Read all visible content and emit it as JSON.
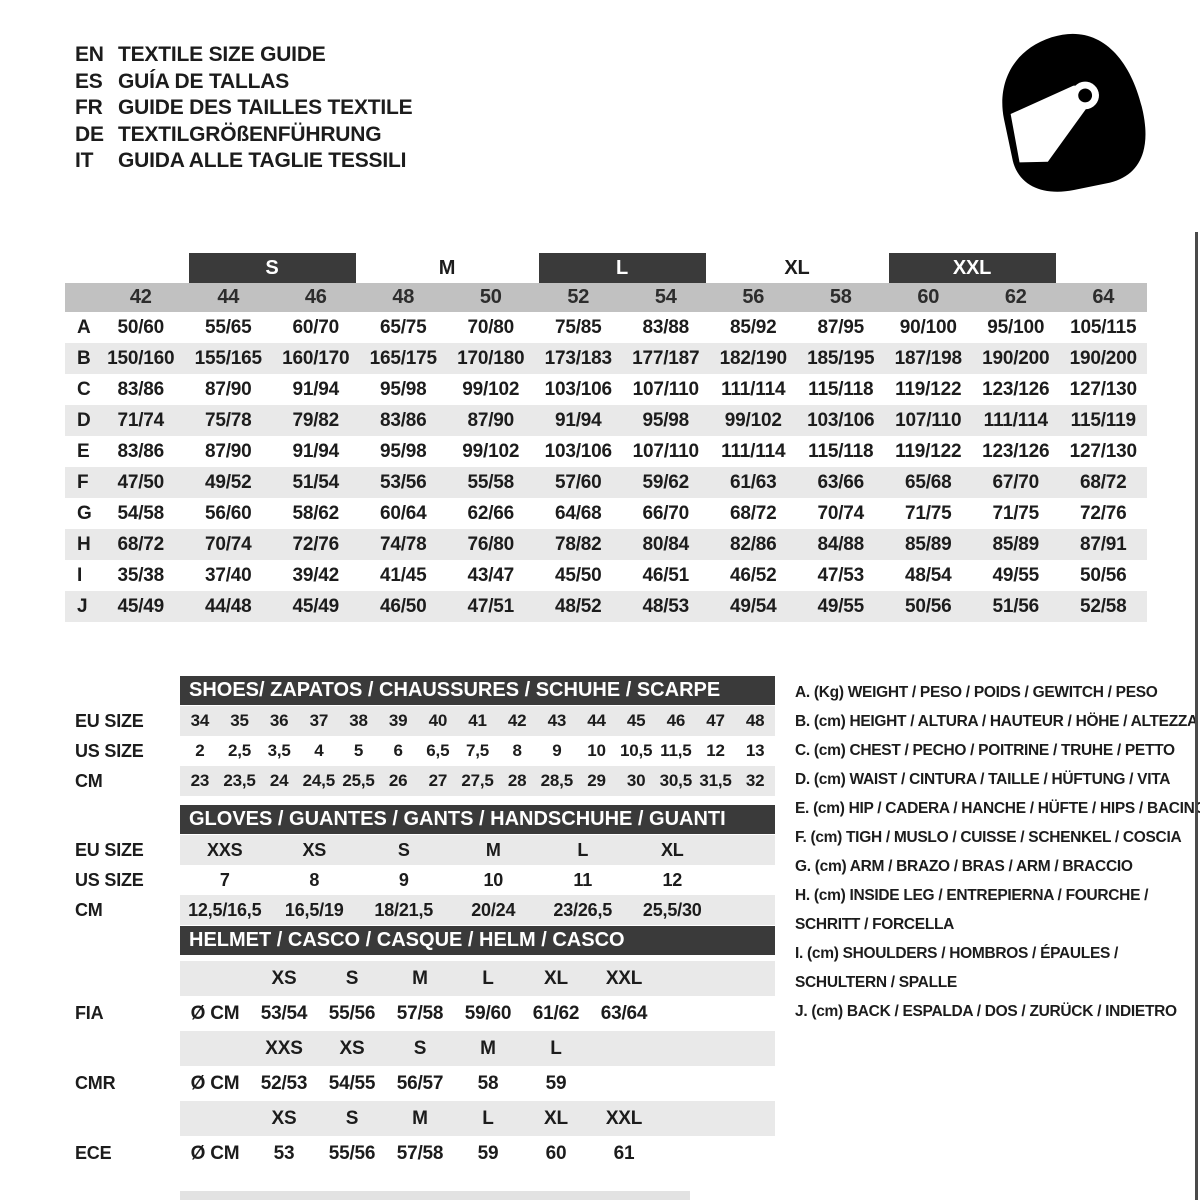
{
  "languages": [
    {
      "code": "EN",
      "label": "TEXTILE SIZE GUIDE"
    },
    {
      "code": "ES",
      "label": "GUÍA DE TALLAS"
    },
    {
      "code": "FR",
      "label": "GUIDE DES TAILLES TEXTILE"
    },
    {
      "code": "DE",
      "label": "TEXTILGRÖßENFÜHRUNG"
    },
    {
      "code": "IT",
      "label": "GUIDA ALLE TAGLIE TESSILI"
    }
  ],
  "helmet_icon": "full-face-racing-helmet",
  "colors": {
    "header_bar": "#3a3a3a",
    "number_band": "#c1c1c1",
    "row_stripe": "#e9e9e9",
    "icon": "#000000"
  },
  "main_table": {
    "size_groups": [
      {
        "label": "S",
        "bar": true,
        "covers": [
          "44",
          "46"
        ]
      },
      {
        "label": "M",
        "bar": false,
        "covers": [
          "48",
          "50"
        ]
      },
      {
        "label": "L",
        "bar": true,
        "covers": [
          "52",
          "54"
        ]
      },
      {
        "label": "XL",
        "bar": false,
        "covers": [
          "56",
          "58"
        ]
      },
      {
        "label": "XXL",
        "bar": true,
        "covers": [
          "60",
          "62"
        ]
      }
    ],
    "columns": [
      "42",
      "44",
      "46",
      "48",
      "50",
      "52",
      "54",
      "56",
      "58",
      "60",
      "62",
      "64"
    ],
    "rows": [
      {
        "letter": "A",
        "values": [
          "50/60",
          "55/65",
          "60/70",
          "65/75",
          "70/80",
          "75/85",
          "83/88",
          "85/92",
          "87/95",
          "90/100",
          "95/100",
          "105/115"
        ]
      },
      {
        "letter": "B",
        "values": [
          "150/160",
          "155/165",
          "160/170",
          "165/175",
          "170/180",
          "173/183",
          "177/187",
          "182/190",
          "185/195",
          "187/198",
          "190/200",
          "190/200"
        ]
      },
      {
        "letter": "C",
        "values": [
          "83/86",
          "87/90",
          "91/94",
          "95/98",
          "99/102",
          "103/106",
          "107/110",
          "111/114",
          "115/118",
          "119/122",
          "123/126",
          "127/130"
        ]
      },
      {
        "letter": "D",
        "values": [
          "71/74",
          "75/78",
          "79/82",
          "83/86",
          "87/90",
          "91/94",
          "95/98",
          "99/102",
          "103/106",
          "107/110",
          "111/114",
          "115/119"
        ]
      },
      {
        "letter": "E",
        "values": [
          "83/86",
          "87/90",
          "91/94",
          "95/98",
          "99/102",
          "103/106",
          "107/110",
          "111/114",
          "115/118",
          "119/122",
          "123/126",
          "127/130"
        ]
      },
      {
        "letter": "F",
        "values": [
          "47/50",
          "49/52",
          "51/54",
          "53/56",
          "55/58",
          "57/60",
          "59/62",
          "61/63",
          "63/66",
          "65/68",
          "67/70",
          "68/72"
        ]
      },
      {
        "letter": "G",
        "values": [
          "54/58",
          "56/60",
          "58/62",
          "60/64",
          "62/66",
          "64/68",
          "66/70",
          "68/72",
          "70/74",
          "71/75",
          "71/75",
          "72/76"
        ]
      },
      {
        "letter": "H",
        "values": [
          "68/72",
          "70/74",
          "72/76",
          "74/78",
          "76/80",
          "78/82",
          "80/84",
          "82/86",
          "84/88",
          "85/89",
          "85/89",
          "87/91"
        ]
      },
      {
        "letter": "I",
        "values": [
          "35/38",
          "37/40",
          "39/42",
          "41/45",
          "43/47",
          "45/50",
          "46/51",
          "46/52",
          "47/53",
          "48/54",
          "49/55",
          "50/56"
        ]
      },
      {
        "letter": "J",
        "values": [
          "45/49",
          "44/48",
          "45/49",
          "46/50",
          "47/51",
          "48/52",
          "48/53",
          "49/54",
          "49/55",
          "50/56",
          "51/56",
          "52/58"
        ]
      }
    ]
  },
  "shoes": {
    "title": "SHOES/ ZAPATOS / CHAUSSURES / SCHUHE / SCARPE",
    "rows": [
      {
        "label": "EU SIZE",
        "striped": true,
        "values": [
          "34",
          "35",
          "36",
          "37",
          "38",
          "39",
          "40",
          "41",
          "42",
          "43",
          "44",
          "45",
          "46",
          "47",
          "48"
        ]
      },
      {
        "label": "US SIZE",
        "striped": false,
        "values": [
          "2",
          "2,5",
          "3,5",
          "4",
          "5",
          "6",
          "6,5",
          "7,5",
          "8",
          "9",
          "10",
          "10,5",
          "11,5",
          "12",
          "13"
        ]
      },
      {
        "label": "CM",
        "striped": true,
        "values": [
          "23",
          "23,5",
          "24",
          "24,5",
          "25,5",
          "26",
          "27",
          "27,5",
          "28",
          "28,5",
          "29",
          "30",
          "30,5",
          "31,5",
          "32"
        ]
      }
    ]
  },
  "gloves": {
    "title": "GLOVES / GUANTES / GANTS / HANDSCHUHE / GUANTI",
    "rows": [
      {
        "label": "EU SIZE",
        "striped": true,
        "values": [
          "XXS",
          "XS",
          "S",
          "M",
          "L",
          "XL"
        ]
      },
      {
        "label": "US SIZE",
        "striped": false,
        "values": [
          "7",
          "8",
          "9",
          "10",
          "11",
          "12"
        ]
      },
      {
        "label": "CM",
        "striped": true,
        "values": [
          "12,5/16,5",
          "16,5/19",
          "18/21,5",
          "20/24",
          "23/26,5",
          "25,5/30"
        ]
      }
    ]
  },
  "helmet": {
    "title": "HELMET / CASCO / CASQUE / HELM / CASCO",
    "groups": [
      {
        "standard": "FIA",
        "unit": "Ø CM",
        "sizes": [
          "XS",
          "S",
          "M",
          "L",
          "XL",
          "XXL"
        ],
        "values": [
          "53/54",
          "55/56",
          "57/58",
          "59/60",
          "61/62",
          "63/64"
        ]
      },
      {
        "standard": "CMR",
        "unit": "Ø CM",
        "sizes": [
          "XXS",
          "XS",
          "S",
          "M",
          "L",
          ""
        ],
        "values": [
          "52/53",
          "54/55",
          "56/57",
          "58",
          "59",
          ""
        ]
      },
      {
        "standard": "ECE",
        "unit": "Ø CM",
        "sizes": [
          "XS",
          "S",
          "M",
          "L",
          "XL",
          "XXL"
        ],
        "values": [
          "53",
          "55/56",
          "57/58",
          "59",
          "60",
          "61"
        ]
      }
    ]
  },
  "legend": [
    {
      "key": "A.",
      "unit": "(Kg)",
      "text": "WEIGHT / PESO / POIDS / GEWITCH / PESO",
      "text2": ""
    },
    {
      "key": "B.",
      "unit": "(cm)",
      "text": "HEIGHT / ALTURA / HAUTEUR / HÖHE / ALTEZZA",
      "text2": ""
    },
    {
      "key": "C.",
      "unit": "(cm)",
      "text": "CHEST / PECHO / POITRINE / TRUHE / PETTO",
      "text2": ""
    },
    {
      "key": "D.",
      "unit": "(cm)",
      "text": "WAIST / CINTURA / TAILLE / HÜFTUNG / VITA",
      "text2": ""
    },
    {
      "key": "E.",
      "unit": "(cm)",
      "text": "HIP / CADERA / HANCHE / HÜFTE / HIPS /  BACINO",
      "text2": ""
    },
    {
      "key": "F.",
      "unit": "(cm)",
      "text": "TIGH / MUSLO / CUISSE / SCHENKEL / COSCIA",
      "text2": ""
    },
    {
      "key": "G.",
      "unit": "(cm)",
      "text": "ARM  / BRAZO / BRAS / ARM / BRACCIO",
      "text2": ""
    },
    {
      "key": "H.",
      "unit": "(cm)",
      "text": "INSIDE LEG / ENTREPIERNA / FOURCHE /",
      "text2": "SCHRITT / FORCELLA"
    },
    {
      "key": "I.",
      "unit": "(cm)",
      "text": "SHOULDERS / HOMBROS / ÉPAULES /",
      "text2": "SCHULTERN / SPALLE"
    },
    {
      "key": "J.",
      "unit": "(cm)",
      "text": "BACK / ESPALDA / DOS / ZURÜCK / INDIETRO",
      "text2": ""
    }
  ]
}
